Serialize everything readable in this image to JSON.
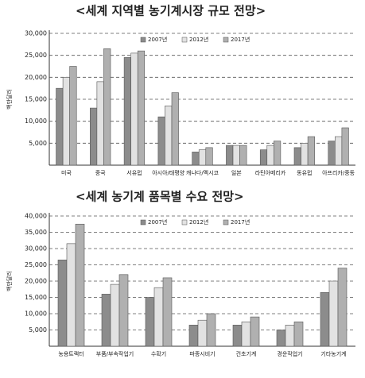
{
  "chart_data": [
    {
      "type": "bar",
      "title": "<세계 지역별 농기계시장 규모 전망>",
      "y_label": "백만달러",
      "categories": [
        "미국",
        "중국",
        "서유럽",
        "아시아/태평양",
        "캐나다/멕시코",
        "일본",
        "라틴아메리카",
        "동유럽",
        "아프리카/중동"
      ],
      "series": [
        {
          "name": "2007년",
          "color": "#8c8c8c",
          "values": [
            17500,
            13000,
            24500,
            11000,
            3000,
            4500,
            3500,
            4000,
            5500
          ]
        },
        {
          "name": "2012년",
          "color": "#e2e2e2",
          "values": [
            20000,
            19000,
            25500,
            13500,
            3500,
            4500,
            4500,
            5000,
            6500
          ]
        },
        {
          "name": "2017년",
          "color": "#b0b0b0",
          "values": [
            22500,
            26500,
            26000,
            16500,
            4000,
            4500,
            5500,
            6500,
            8500
          ]
        }
      ],
      "ylim": [
        0,
        30000
      ],
      "yticks": [
        {
          "value": 5000,
          "label": "5,000"
        },
        {
          "value": 10000,
          "label": "10,000"
        },
        {
          "value": 15000,
          "label": "15,000"
        },
        {
          "value": 20000,
          "label": "20,000"
        },
        {
          "value": 25000,
          "label": "25,000"
        },
        {
          "value": 30000,
          "label": "30,000"
        }
      ],
      "grid": true
    },
    {
      "type": "bar",
      "title": "<세계 농기계 품목별 수요 전망>",
      "y_label": "백만달러",
      "categories": [
        "농용트랙터",
        "부품/부속작업기",
        "수확기",
        "파종시비기",
        "건초기계",
        "경운작업기",
        "기타농기계"
      ],
      "series": [
        {
          "name": "2007년",
          "color": "#8c8c8c",
          "values": [
            26500,
            16000,
            15000,
            6500,
            6500,
            5000,
            16500
          ]
        },
        {
          "name": "2012년",
          "color": "#e2e2e2",
          "values": [
            31500,
            19000,
            18000,
            8000,
            7500,
            6500,
            20000
          ]
        },
        {
          "name": "2017년",
          "color": "#b0b0b0",
          "values": [
            37500,
            22000,
            21000,
            10000,
            9000,
            7500,
            24000
          ]
        }
      ],
      "ylim": [
        0,
        40000
      ],
      "yticks": [
        {
          "value": 5000,
          "label": "5,000"
        },
        {
          "value": 10000,
          "label": "10,000"
        },
        {
          "value": 15000,
          "label": "15,000"
        },
        {
          "value": 20000,
          "label": "20,000"
        },
        {
          "value": 25000,
          "label": "25,000"
        },
        {
          "value": 30000,
          "label": "30,000"
        },
        {
          "value": 35000,
          "label": "35,000"
        },
        {
          "value": 40000,
          "label": "40,000"
        }
      ],
      "grid": true
    }
  ]
}
